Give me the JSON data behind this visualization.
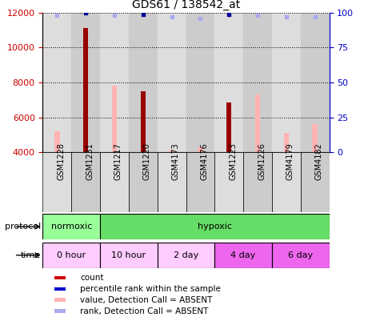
{
  "title": "GDS61 / 138542_at",
  "samples": [
    "GSM1228",
    "GSM1231",
    "GSM1217",
    "GSM1220",
    "GSM4173",
    "GSM4176",
    "GSM1223",
    "GSM1226",
    "GSM4179",
    "GSM4182"
  ],
  "count_values": [
    null,
    11100,
    null,
    7500,
    null,
    null,
    6850,
    null,
    null,
    null
  ],
  "absent_values": [
    5200,
    null,
    7800,
    null,
    4100,
    4300,
    null,
    7300,
    5100,
    5600
  ],
  "rank_dark_blue": [
    null,
    100,
    null,
    99,
    null,
    null,
    99,
    null,
    null,
    null
  ],
  "rank_light_blue": [
    98,
    null,
    98,
    null,
    97,
    96,
    null,
    98,
    97,
    97
  ],
  "ylim_left": [
    4000,
    12000
  ],
  "ylim_right": [
    0,
    100
  ],
  "yticks_left": [
    4000,
    6000,
    8000,
    10000,
    12000
  ],
  "yticks_right": [
    0,
    25,
    50,
    75,
    100
  ],
  "left_axis_color": "#cc0000",
  "right_axis_color": "#0000cc",
  "bar_dark_red": "#990000",
  "bar_light_pink": "#ffb3b3",
  "dot_dark_blue": "#000099",
  "dot_light_blue": "#aaaaee",
  "bg_odd": "#dddddd",
  "bg_even": "#cccccc",
  "protocol_normoxic_color": "#99ff99",
  "protocol_hypoxic_color": "#66dd66",
  "time_color_light": "#ffccff",
  "time_color_dark": "#ee66ee",
  "protocol_groups": [
    {
      "label": "normoxic",
      "start": 0,
      "end": 2
    },
    {
      "label": "hypoxic",
      "start": 2,
      "end": 10
    }
  ],
  "time_groups": [
    {
      "label": "0 hour",
      "start": 0,
      "end": 2,
      "dark": false
    },
    {
      "label": "10 hour",
      "start": 2,
      "end": 4,
      "dark": false
    },
    {
      "label": "2 day",
      "start": 4,
      "end": 6,
      "dark": false
    },
    {
      "label": "4 day",
      "start": 6,
      "end": 8,
      "dark": true
    },
    {
      "label": "6 day",
      "start": 8,
      "end": 10,
      "dark": true
    }
  ],
  "legend_items": [
    {
      "label": "count",
      "color": "#cc0000"
    },
    {
      "label": "percentile rank within the sample",
      "color": "#0000cc"
    },
    {
      "label": "value, Detection Call = ABSENT",
      "color": "#ffb3b3"
    },
    {
      "label": "rank, Detection Call = ABSENT",
      "color": "#aaaaee"
    }
  ]
}
